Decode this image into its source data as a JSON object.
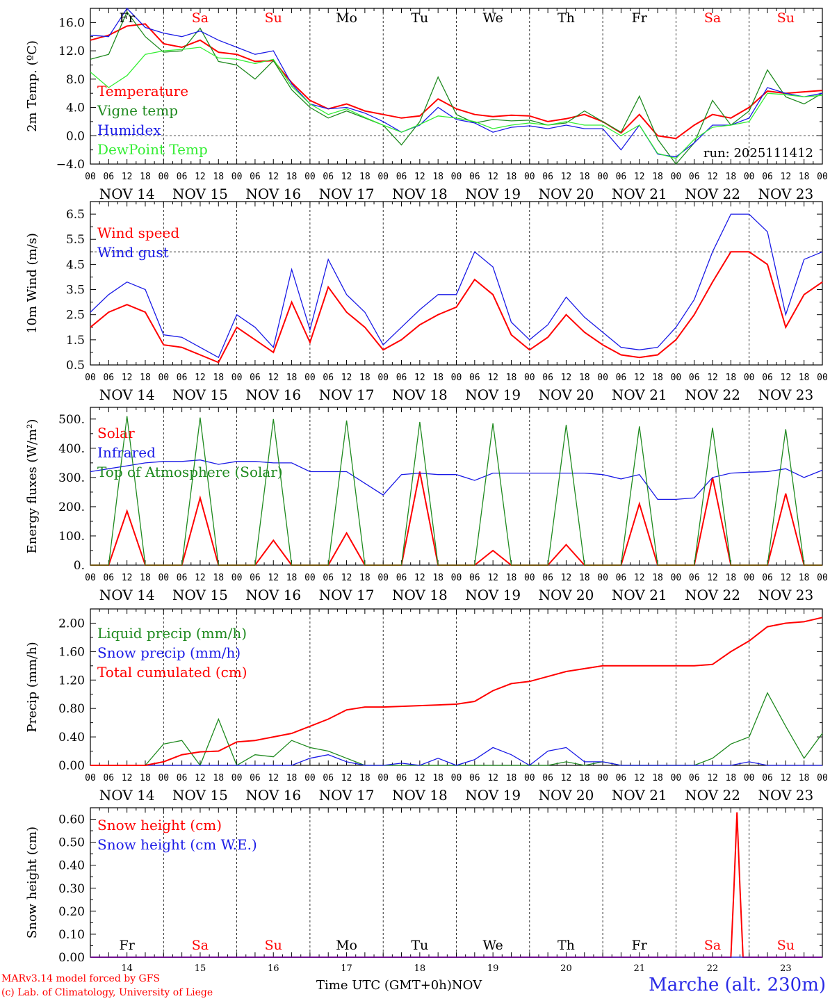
{
  "days": [
    {
      "dow": "Fr",
      "weekend": false,
      "label": "NOV 14",
      "num": "14"
    },
    {
      "dow": "Sa",
      "weekend": true,
      "label": "NOV 15",
      "num": "15"
    },
    {
      "dow": "Su",
      "weekend": true,
      "label": "NOV 16",
      "num": "16"
    },
    {
      "dow": "Mo",
      "weekend": false,
      "label": "NOV 17",
      "num": "17"
    },
    {
      "dow": "Tu",
      "weekend": false,
      "label": "NOV 18",
      "num": "18"
    },
    {
      "dow": "We",
      "weekend": false,
      "label": "NOV 19",
      "num": "19"
    },
    {
      "dow": "Th",
      "weekend": false,
      "label": "NOV 20",
      "num": "20"
    },
    {
      "dow": "Fr",
      "weekend": false,
      "label": "NOV 21",
      "num": "21"
    },
    {
      "dow": "Sa",
      "weekend": true,
      "label": "NOV 22",
      "num": "22"
    },
    {
      "dow": "Su",
      "weekend": true,
      "label": "NOV 23",
      "num": "23"
    }
  ],
  "hour_ticks": [
    "00",
    "06",
    "12",
    "18"
  ],
  "colors": {
    "red": "#ff0000",
    "green": "#1f8a1f",
    "blue": "#1a1ae6",
    "lightgreen": "#33ee33",
    "black": "#000000"
  },
  "footer": {
    "credit_line1": "MARv3.14 model forced by GFS",
    "credit_line2": "(c) Lab. of Climatology, University of Liege",
    "x_title": "Time UTC (GMT+0h)",
    "month": "NOV",
    "station": "Marche (alt. 230m)"
  },
  "chart_data": [
    {
      "type": "line",
      "title": "2m Temperature",
      "ylabel": "2m Temp. (ºC)",
      "ylim": [
        -4,
        18
      ],
      "yticks": [
        -4,
        0,
        4,
        8,
        12,
        16
      ],
      "ytick_labels": [
        "−4.0",
        "0.0",
        "4.0",
        "8.0",
        "12.0",
        "16.0"
      ],
      "ref_line": 0,
      "run_label": "run: 2025111412",
      "show_dow": true,
      "x_hours": [
        0,
        6,
        12,
        18,
        24,
        30,
        36,
        42,
        48,
        54,
        60,
        66,
        72,
        78,
        84,
        90,
        96,
        102,
        108,
        114,
        120,
        126,
        132,
        138,
        144,
        150,
        156,
        162,
        168,
        174,
        180,
        186,
        192,
        198,
        204,
        210,
        216,
        222,
        228,
        234,
        240
      ],
      "series": [
        {
          "name": "Temperature",
          "color": "red",
          "values": [
            13.5,
            14.2,
            15.5,
            15.8,
            13.0,
            12.5,
            13.5,
            11.8,
            11.5,
            10.5,
            10.6,
            7.5,
            5.0,
            3.8,
            4.5,
            3.5,
            3.0,
            2.5,
            2.8,
            5.2,
            3.8,
            3.0,
            2.7,
            2.9,
            2.8,
            2.0,
            2.4,
            3.0,
            2.0,
            0.4,
            3.0,
            0.0,
            -0.4,
            1.5,
            3.0,
            2.5,
            4.0,
            6.3,
            6.0,
            6.2,
            6.4
          ]
        },
        {
          "name": "Vigne temp",
          "color": "green",
          "values": [
            10.8,
            11.5,
            17.5,
            14.0,
            11.8,
            12.0,
            15.2,
            10.5,
            10.0,
            8.0,
            10.6,
            6.5,
            4.0,
            2.5,
            3.5,
            2.5,
            1.5,
            -1.3,
            2.0,
            8.3,
            3.0,
            1.8,
            2.3,
            2.1,
            2.2,
            1.5,
            1.8,
            3.5,
            2.0,
            0.5,
            5.6,
            -0.5,
            -4.0,
            -1.0,
            5.0,
            1.5,
            3.5,
            9.3,
            5.5,
            4.5,
            6.0
          ]
        },
        {
          "name": "Humidex",
          "color": "blue",
          "values": [
            14.2,
            14.0,
            18.0,
            15.3,
            14.5,
            14.0,
            14.8,
            13.5,
            12.5,
            11.5,
            12.0,
            7.3,
            4.5,
            3.8,
            4.0,
            3.2,
            2.0,
            0.5,
            1.5,
            4.0,
            2.3,
            1.8,
            0.5,
            1.2,
            1.4,
            1.0,
            1.5,
            1.0,
            1.0,
            -2.0,
            1.5,
            -2.6,
            -3.0,
            -1.0,
            1.5,
            1.5,
            2.5,
            6.8,
            6.0,
            5.5,
            6.0
          ]
        },
        {
          "name": "DewPoint Temp",
          "color": "lightgreen",
          "values": [
            9.0,
            6.8,
            8.5,
            11.5,
            12.0,
            12.2,
            12.5,
            11.0,
            10.8,
            10.2,
            10.8,
            7.0,
            4.5,
            3.0,
            3.8,
            2.6,
            1.5,
            0.5,
            1.6,
            2.8,
            2.5,
            2.0,
            1.0,
            1.5,
            1.8,
            1.5,
            2.0,
            1.5,
            1.5,
            0.0,
            1.5,
            -2.5,
            -3.2,
            -0.5,
            1.2,
            1.5,
            2.0,
            6.0,
            5.8,
            5.5,
            5.7
          ]
        }
      ]
    },
    {
      "type": "line",
      "title": "10m Wind",
      "ylabel": "10m Wind (m/s)",
      "ylim": [
        0.5,
        7.0
      ],
      "yticks": [
        0.5,
        1.5,
        2.5,
        3.5,
        4.5,
        5.5,
        6.5
      ],
      "ytick_labels": [
        "0.5",
        "1.5",
        "2.5",
        "3.5",
        "4.5",
        "5.5",
        "6.5"
      ],
      "ref_line": 5,
      "x_hours": [
        0,
        6,
        12,
        18,
        24,
        30,
        36,
        42,
        48,
        54,
        60,
        66,
        72,
        78,
        84,
        90,
        96,
        102,
        108,
        114,
        120,
        126,
        132,
        138,
        144,
        150,
        156,
        162,
        168,
        174,
        180,
        186,
        192,
        198,
        204,
        210,
        216,
        222,
        228,
        234,
        240
      ],
      "series": [
        {
          "name": "Wind speed",
          "color": "red",
          "values": [
            2.0,
            2.6,
            2.9,
            2.6,
            1.3,
            1.2,
            0.9,
            0.6,
            2.0,
            1.5,
            1.0,
            3.0,
            1.4,
            3.6,
            2.6,
            2.0,
            1.1,
            1.5,
            2.1,
            2.5,
            2.8,
            3.9,
            3.3,
            1.7,
            1.1,
            1.6,
            2.5,
            1.8,
            1.3,
            0.9,
            0.8,
            0.9,
            1.5,
            2.5,
            3.8,
            5.0,
            5.0,
            4.5,
            2.0,
            3.3,
            3.8
          ]
        },
        {
          "name": "Wind gust",
          "color": "blue",
          "values": [
            2.6,
            3.3,
            3.8,
            3.5,
            1.7,
            1.6,
            1.2,
            0.8,
            2.5,
            2.0,
            1.2,
            4.3,
            1.9,
            4.7,
            3.3,
            2.6,
            1.3,
            2.0,
            2.7,
            3.3,
            3.3,
            5.0,
            4.4,
            2.2,
            1.5,
            2.1,
            3.2,
            2.4,
            1.8,
            1.2,
            1.1,
            1.2,
            2.0,
            3.1,
            5.0,
            6.5,
            6.5,
            5.8,
            2.5,
            4.7,
            5.0
          ]
        }
      ]
    },
    {
      "type": "line",
      "title": "Energy fluxes",
      "ylabel": "Energy fluxes (W/m²)",
      "ylim": [
        0,
        540
      ],
      "yticks": [
        0,
        100,
        200,
        300,
        400,
        500
      ],
      "ytick_labels": [
        "0.",
        "100.",
        "200.",
        "300.",
        "400.",
        "500."
      ],
      "x_hours": [
        0,
        6,
        12,
        18,
        24,
        30,
        36,
        42,
        48,
        54,
        60,
        66,
        72,
        78,
        84,
        90,
        96,
        102,
        108,
        114,
        120,
        126,
        132,
        138,
        144,
        150,
        156,
        162,
        168,
        174,
        180,
        186,
        192,
        198,
        204,
        210,
        216,
        222,
        228,
        234,
        240
      ],
      "series": [
        {
          "name": "Solar",
          "color": "red",
          "values": [
            0,
            0,
            185,
            0,
            0,
            0,
            230,
            0,
            0,
            0,
            85,
            0,
            0,
            0,
            110,
            0,
            0,
            0,
            320,
            0,
            0,
            0,
            50,
            0,
            0,
            0,
            70,
            0,
            0,
            0,
            210,
            0,
            0,
            0,
            300,
            0,
            0,
            0,
            245,
            0,
            0
          ]
        },
        {
          "name": "Infrared",
          "color": "blue",
          "values": [
            320,
            330,
            340,
            350,
            355,
            355,
            360,
            345,
            355,
            355,
            350,
            350,
            320,
            320,
            320,
            280,
            240,
            310,
            315,
            310,
            310,
            290,
            315,
            315,
            315,
            315,
            315,
            315,
            310,
            295,
            310,
            225,
            225,
            230,
            300,
            315,
            318,
            320,
            330,
            300,
            325
          ]
        },
        {
          "name": "Top of Atmosphere (Solar)",
          "color": "green",
          "values": [
            0,
            0,
            510,
            0,
            0,
            0,
            505,
            0,
            0,
            0,
            500,
            0,
            0,
            0,
            495,
            0,
            0,
            0,
            490,
            0,
            0,
            0,
            485,
            0,
            0,
            0,
            480,
            0,
            0,
            0,
            475,
            0,
            0,
            0,
            470,
            0,
            0,
            0,
            465,
            0,
            0
          ]
        }
      ]
    },
    {
      "type": "line",
      "title": "Precip",
      "ylabel": "Precip (mm/h)",
      "ylim": [
        0,
        2.2
      ],
      "yticks": [
        0,
        0.4,
        0.8,
        1.2,
        1.6,
        2.0
      ],
      "ytick_labels": [
        "0.00",
        "0.40",
        "0.80",
        "1.20",
        "1.60",
        "2.00"
      ],
      "x_hours": [
        0,
        6,
        12,
        18,
        24,
        30,
        36,
        42,
        48,
        54,
        60,
        66,
        72,
        78,
        84,
        90,
        96,
        102,
        108,
        114,
        120,
        126,
        132,
        138,
        144,
        150,
        156,
        162,
        168,
        174,
        180,
        186,
        192,
        198,
        204,
        210,
        216,
        222,
        228,
        234,
        240
      ],
      "series": [
        {
          "name": "Liquid precip (mm/h)",
          "color": "green",
          "values": [
            0,
            0,
            0,
            0,
            0.3,
            0.35,
            0,
            0.65,
            0,
            0.15,
            0.12,
            0.35,
            0.25,
            0.2,
            0.1,
            0,
            0,
            0,
            0,
            0,
            0,
            0,
            0,
            0,
            0,
            0,
            0.05,
            0,
            0.05,
            0,
            0,
            0,
            0,
            0,
            0.1,
            0.3,
            0.4,
            1.02,
            0.55,
            0.1,
            0.45
          ]
        },
        {
          "name": "Snow precip (mm/h)",
          "color": "blue",
          "values": [
            0,
            0,
            0,
            0,
            0,
            0,
            0,
            0,
            0,
            0,
            0,
            0,
            0.1,
            0.15,
            0.05,
            0,
            0,
            0.03,
            0,
            0.1,
            0,
            0.08,
            0.25,
            0.15,
            0,
            0.2,
            0.25,
            0.05,
            0.05,
            0,
            0,
            0,
            0,
            0,
            0,
            0,
            0.05,
            0,
            0,
            0,
            0
          ]
        },
        {
          "name": "Total cumulated (cm)",
          "color": "red",
          "values": [
            0,
            0,
            0,
            0,
            0.05,
            0.15,
            0.19,
            0.2,
            0.33,
            0.35,
            0.4,
            0.45,
            0.55,
            0.65,
            0.78,
            0.82,
            0.82,
            0.83,
            0.84,
            0.85,
            0.86,
            0.9,
            1.05,
            1.15,
            1.18,
            1.25,
            1.32,
            1.36,
            1.4,
            1.4,
            1.4,
            1.4,
            1.4,
            1.4,
            1.42,
            1.6,
            1.75,
            1.95,
            2.0,
            2.02,
            2.08
          ]
        }
      ]
    },
    {
      "type": "line",
      "title": "Snow height",
      "ylabel": "Snow height (cm)",
      "ylim": [
        0,
        0.65
      ],
      "yticks": [
        0,
        0.1,
        0.2,
        0.3,
        0.4,
        0.5,
        0.6
      ],
      "ytick_labels": [
        "0.00",
        "0.10",
        "0.20",
        "0.30",
        "0.40",
        "0.50",
        "0.60"
      ],
      "show_dow_bottom": true,
      "x_hours": [
        0,
        24,
        48,
        72,
        96,
        120,
        144,
        168,
        192,
        210,
        211,
        212,
        213,
        214,
        240
      ],
      "series": [
        {
          "name": "Snow height (cm)",
          "color": "red",
          "values": [
            0,
            0,
            0,
            0,
            0,
            0,
            0,
            0,
            0,
            0,
            0.3,
            0.63,
            0.3,
            0,
            0
          ]
        },
        {
          "name": "Snow height (cm W.E.)",
          "color": "blue",
          "values": [
            0,
            0,
            0,
            0,
            0,
            0,
            0,
            0,
            0,
            0,
            0,
            0,
            0,
            0,
            0
          ]
        }
      ]
    }
  ]
}
